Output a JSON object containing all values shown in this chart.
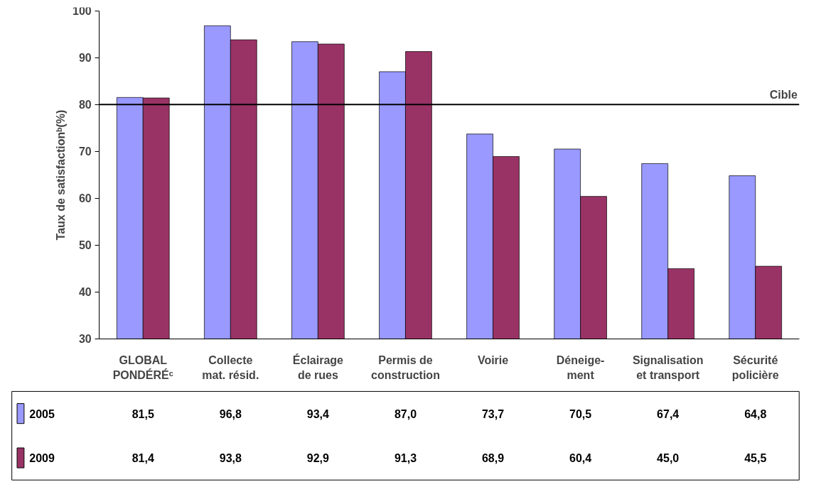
{
  "chart_data": {
    "type": "bar",
    "ylabel": "Taux de satisfactionᵇ(%)",
    "categories": [
      "GLOBAL\nPONDÉRÉᶜ",
      "Collecte\nmat. résid.",
      "Éclairage\nde rues",
      "Permis de\nconstruction",
      "Voirie",
      "Déneige-\nment",
      "Signalisation\net transport",
      "Sécurité\npolicière"
    ],
    "series": [
      {
        "name": "2005",
        "color": "#9999ff",
        "values": [
          81.5,
          96.8,
          93.4,
          87.0,
          73.7,
          70.5,
          67.4,
          64.8
        ],
        "value_labels": [
          "81,5",
          "96,8",
          "93,4",
          "87,0",
          "73,7",
          "70,5",
          "67,4",
          "64,8"
        ]
      },
      {
        "name": "2009",
        "color": "#993366",
        "values": [
          81.4,
          93.8,
          92.9,
          91.3,
          68.9,
          60.4,
          45.0,
          45.5
        ],
        "value_labels": [
          "81,4",
          "93,8",
          "92,9",
          "91,3",
          "68,9",
          "60,4",
          "45,0",
          "45,5"
        ]
      }
    ],
    "ylim": [
      30,
      100
    ],
    "yticks": [
      30,
      40,
      50,
      60,
      70,
      80,
      90,
      100
    ],
    "ref_lines": [
      {
        "axis": "y",
        "value": 80,
        "label": "Cible",
        "color": "#000000"
      }
    ],
    "grid": false,
    "legend": "bottom"
  }
}
